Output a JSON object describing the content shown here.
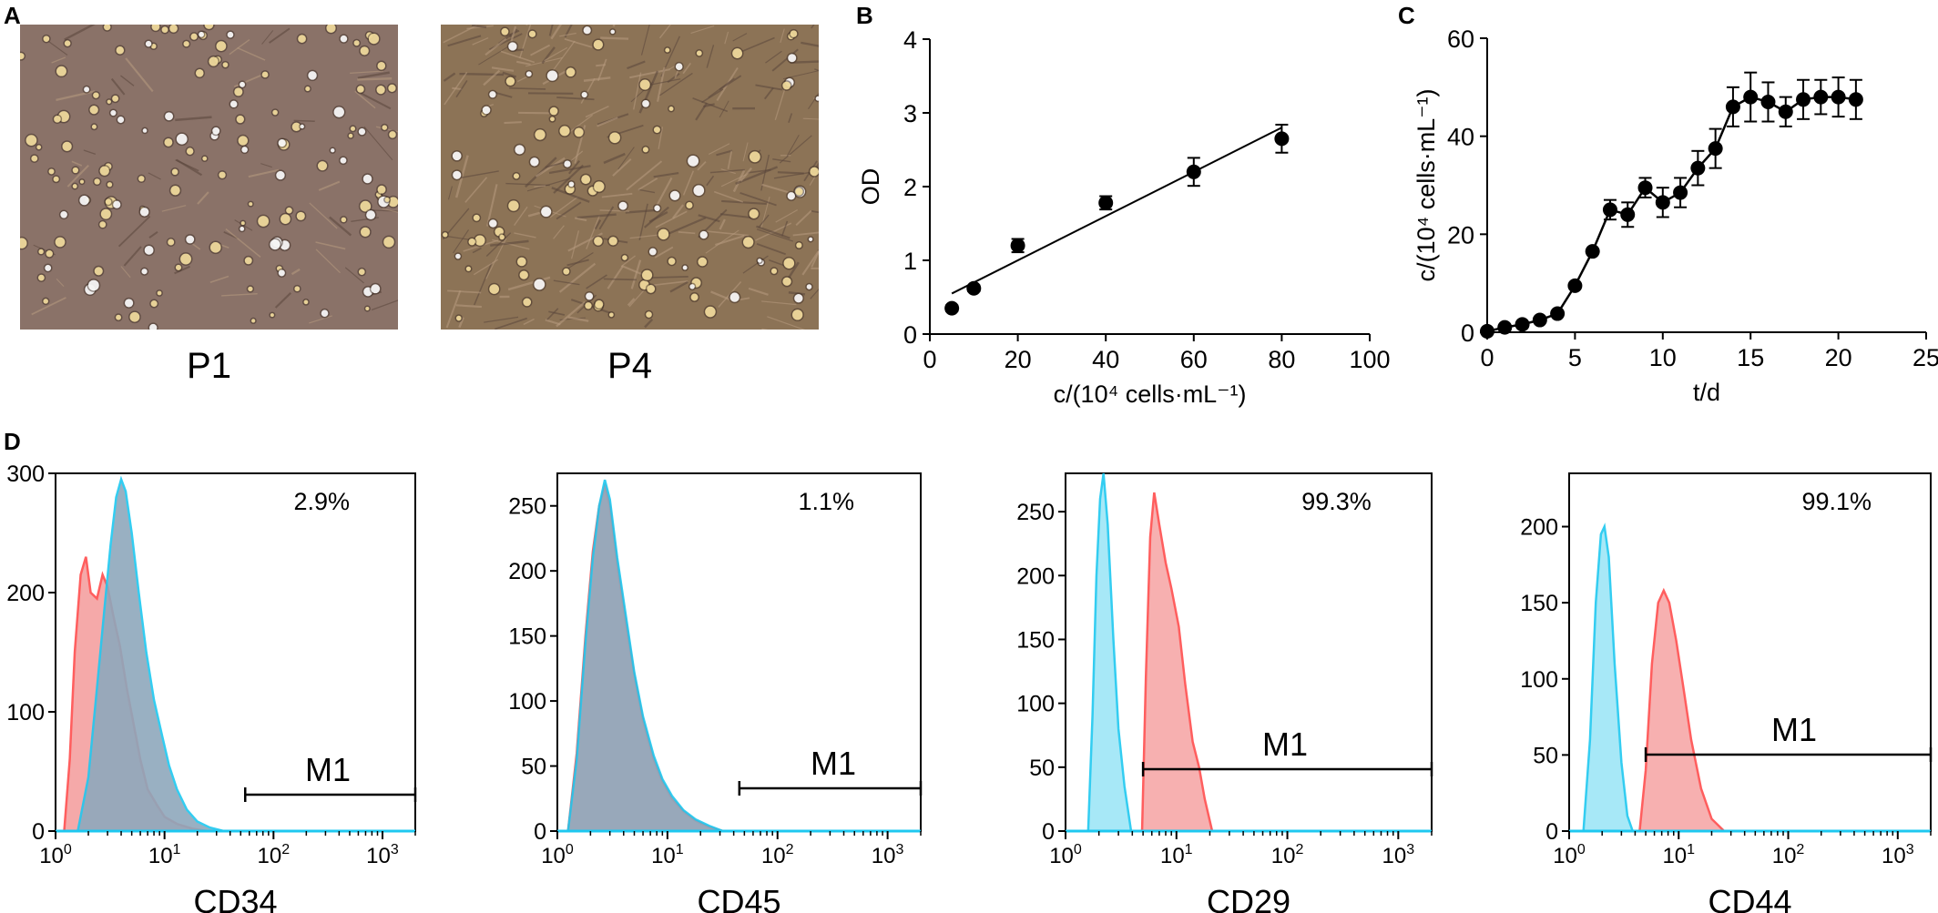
{
  "panels": {
    "A": {
      "letter": "A",
      "images": [
        {
          "label": "P1",
          "bg": "#8a7268"
        },
        {
          "label": "P4",
          "bg": "#8c7356"
        }
      ]
    },
    "B": {
      "letter": "B"
    },
    "C": {
      "letter": "C"
    },
    "D": {
      "letter": "D"
    }
  },
  "chart_data": [
    {
      "id": "B",
      "type": "scatter",
      "xlabel": "c/(10⁴ cells·mL⁻¹)",
      "ylabel": "OD",
      "xlim": [
        0,
        100
      ],
      "ylim": [
        0,
        4
      ],
      "xticks": [
        0,
        20,
        40,
        60,
        80,
        100
      ],
      "yticks": [
        0,
        1,
        2,
        3,
        4
      ],
      "points": [
        {
          "x": 5,
          "y": 0.35,
          "err": 0.04
        },
        {
          "x": 10,
          "y": 0.62,
          "err": 0.04
        },
        {
          "x": 20,
          "y": 1.2,
          "err": 0.09
        },
        {
          "x": 40,
          "y": 1.78,
          "err": 0.09
        },
        {
          "x": 60,
          "y": 2.2,
          "err": 0.19
        },
        {
          "x": 80,
          "y": 2.65,
          "err": 0.19
        }
      ],
      "fit": [
        {
          "x": 5,
          "y": 0.55
        },
        {
          "x": 80,
          "y": 2.8
        }
      ]
    },
    {
      "id": "C",
      "type": "line",
      "xlabel": "t/d",
      "ylabel": "c/(10⁴ cells·mL⁻¹)",
      "xlim": [
        0,
        25
      ],
      "ylim": [
        0,
        60
      ],
      "xticks": [
        0,
        5,
        10,
        15,
        20,
        25
      ],
      "yticks": [
        0,
        20,
        40,
        60
      ],
      "points": [
        {
          "x": 0,
          "y": 0.2,
          "err": 0
        },
        {
          "x": 1,
          "y": 1.0,
          "err": 0
        },
        {
          "x": 2,
          "y": 1.6,
          "err": 0
        },
        {
          "x": 3,
          "y": 2.5,
          "err": 0
        },
        {
          "x": 4,
          "y": 3.8,
          "err": 0
        },
        {
          "x": 5,
          "y": 9.5,
          "err": 0
        },
        {
          "x": 6,
          "y": 16.5,
          "err": 0
        },
        {
          "x": 7,
          "y": 25,
          "err": 2
        },
        {
          "x": 8,
          "y": 24,
          "err": 2.5
        },
        {
          "x": 9,
          "y": 29.5,
          "err": 2
        },
        {
          "x": 10,
          "y": 26.5,
          "err": 3
        },
        {
          "x": 11,
          "y": 28.5,
          "err": 3
        },
        {
          "x": 12,
          "y": 33.5,
          "err": 3.5
        },
        {
          "x": 13,
          "y": 37.5,
          "err": 4
        },
        {
          "x": 14,
          "y": 46,
          "err": 4
        },
        {
          "x": 15,
          "y": 48,
          "err": 5
        },
        {
          "x": 16,
          "y": 47,
          "err": 4
        },
        {
          "x": 17,
          "y": 45,
          "err": 3
        },
        {
          "x": 18,
          "y": 47.5,
          "err": 4
        },
        {
          "x": 19,
          "y": 48,
          "err": 3.5
        },
        {
          "x": 20,
          "y": 48,
          "err": 4
        },
        {
          "x": 21,
          "y": 47.5,
          "err": 4
        }
      ]
    },
    {
      "id": "CD34",
      "type": "area",
      "xlabel": "CD34",
      "percent": "2.9%",
      "gate_label": "M1",
      "gate": [
        55,
        2000
      ],
      "ymax": 300,
      "yticks": [
        0,
        100,
        200,
        300
      ],
      "xscale": "log",
      "xlim": [
        1,
        2000
      ],
      "series": [
        {
          "color": "#ff4d4d",
          "fill": "#f5a0a0",
          "points": [
            [
              1.2,
              0
            ],
            [
              1.35,
              60
            ],
            [
              1.5,
              150
            ],
            [
              1.7,
              215
            ],
            [
              1.9,
              230
            ],
            [
              2.1,
              200
            ],
            [
              2.4,
              195
            ],
            [
              2.7,
              215
            ],
            [
              3.0,
              205
            ],
            [
              3.4,
              180
            ],
            [
              3.9,
              155
            ],
            [
              4.5,
              120
            ],
            [
              5.2,
              90
            ],
            [
              6.0,
              60
            ],
            [
              7,
              35
            ],
            [
              8.5,
              22
            ],
            [
              10,
              12
            ],
            [
              13,
              6
            ],
            [
              18,
              2
            ],
            [
              25,
              0
            ]
          ]
        },
        {
          "color": "#1ec8f0",
          "fill": "#8ea8bc",
          "points": [
            [
              1.6,
              0
            ],
            [
              2.0,
              45
            ],
            [
              2.4,
              120
            ],
            [
              2.8,
              185
            ],
            [
              3.2,
              240
            ],
            [
              3.6,
              280
            ],
            [
              4.0,
              295
            ],
            [
              4.4,
              285
            ],
            [
              5.0,
              250
            ],
            [
              5.8,
              200
            ],
            [
              6.8,
              150
            ],
            [
              8,
              110
            ],
            [
              9.5,
              80
            ],
            [
              11,
              55
            ],
            [
              13,
              35
            ],
            [
              16,
              18
            ],
            [
              20,
              8
            ],
            [
              26,
              3
            ],
            [
              35,
              0
            ]
          ]
        }
      ]
    },
    {
      "id": "CD45",
      "type": "area",
      "xlabel": "CD45",
      "percent": "1.1%",
      "gate_label": "M1",
      "gate": [
        45,
        2000
      ],
      "ymax": 275,
      "yticks": [
        0,
        50,
        100,
        150,
        200,
        250
      ],
      "xscale": "log",
      "xlim": [
        1,
        2000
      ],
      "series": [
        {
          "color": "#ff4d4d",
          "fill": "#f5a0a0",
          "points": [
            [
              1.25,
              0
            ],
            [
              1.5,
              60
            ],
            [
              1.8,
              150
            ],
            [
              2.1,
              215
            ],
            [
              2.4,
              250
            ],
            [
              2.7,
              265
            ],
            [
              3.0,
              250
            ],
            [
              3.5,
              205
            ],
            [
              4.2,
              160
            ],
            [
              5,
              120
            ],
            [
              6,
              85
            ],
            [
              7.5,
              55
            ],
            [
              9,
              38
            ],
            [
              11,
              25
            ],
            [
              14,
              15
            ],
            [
              18,
              8
            ],
            [
              24,
              3
            ],
            [
              32,
              0
            ]
          ]
        },
        {
          "color": "#1ec8f0",
          "fill": "#8ea8bc",
          "points": [
            [
              1.25,
              0
            ],
            [
              1.5,
              55
            ],
            [
              1.8,
              145
            ],
            [
              2.1,
              210
            ],
            [
              2.4,
              250
            ],
            [
              2.7,
              270
            ],
            [
              3.0,
              255
            ],
            [
              3.5,
              210
            ],
            [
              4.2,
              165
            ],
            [
              5,
              122
            ],
            [
              6,
              88
            ],
            [
              7.5,
              58
            ],
            [
              9,
              40
            ],
            [
              11,
              27
            ],
            [
              14,
              16
            ],
            [
              18,
              9
            ],
            [
              24,
              4
            ],
            [
              32,
              0
            ]
          ]
        }
      ]
    },
    {
      "id": "CD29",
      "type": "area",
      "xlabel": "CD29",
      "percent": "99.3%",
      "gate_label": "M1",
      "gate": [
        5,
        2000
      ],
      "ymax": 280,
      "yticks": [
        0,
        50,
        100,
        150,
        200,
        250
      ],
      "xscale": "log",
      "xlim": [
        1,
        2000
      ],
      "series": [
        {
          "color": "#1ec8f0",
          "fill": "#9ee6f7",
          "points": [
            [
              1.6,
              0
            ],
            [
              1.75,
              90
            ],
            [
              1.9,
              200
            ],
            [
              2.05,
              260
            ],
            [
              2.2,
              280
            ],
            [
              2.4,
              240
            ],
            [
              2.7,
              150
            ],
            [
              3.0,
              80
            ],
            [
              3.4,
              35
            ],
            [
              3.9,
              0
            ]
          ]
        },
        {
          "color": "#ff4d4d",
          "fill": "#f7a8a8",
          "points": [
            [
              4.9,
              0
            ],
            [
              5.3,
              120
            ],
            [
              5.8,
              230
            ],
            [
              6.3,
              265
            ],
            [
              7.0,
              240
            ],
            [
              8.0,
              210
            ],
            [
              9.0,
              190
            ],
            [
              10.5,
              160
            ],
            [
              12,
              115
            ],
            [
              14,
              70
            ],
            [
              16,
              50
            ],
            [
              18,
              25
            ],
            [
              21,
              0
            ]
          ]
        }
      ]
    },
    {
      "id": "CD44",
      "type": "area",
      "xlabel": "CD44",
      "percent": "99.1%",
      "gate_label": "M1",
      "gate": [
        5,
        2000
      ],
      "ymax": 235,
      "yticks": [
        0,
        50,
        100,
        150,
        200
      ],
      "xscale": "log",
      "xlim": [
        1,
        2000
      ],
      "series": [
        {
          "color": "#1ec8f0",
          "fill": "#9ee6f7",
          "points": [
            [
              1.35,
              0
            ],
            [
              1.55,
              60
            ],
            [
              1.75,
              150
            ],
            [
              1.95,
              195
            ],
            [
              2.1,
              200
            ],
            [
              2.3,
              180
            ],
            [
              2.6,
              110
            ],
            [
              3.0,
              45
            ],
            [
              3.4,
              10
            ],
            [
              3.8,
              0
            ]
          ]
        },
        {
          "color": "#ff4d4d",
          "fill": "#f7a8a8",
          "points": [
            [
              4.4,
              0
            ],
            [
              5.0,
              40
            ],
            [
              5.7,
              110
            ],
            [
              6.5,
              150
            ],
            [
              7.3,
              158
            ],
            [
              8.2,
              150
            ],
            [
              9.5,
              125
            ],
            [
              11,
              95
            ],
            [
              13,
              60
            ],
            [
              16,
              28
            ],
            [
              20,
              8
            ],
            [
              26,
              0
            ]
          ]
        }
      ]
    }
  ]
}
